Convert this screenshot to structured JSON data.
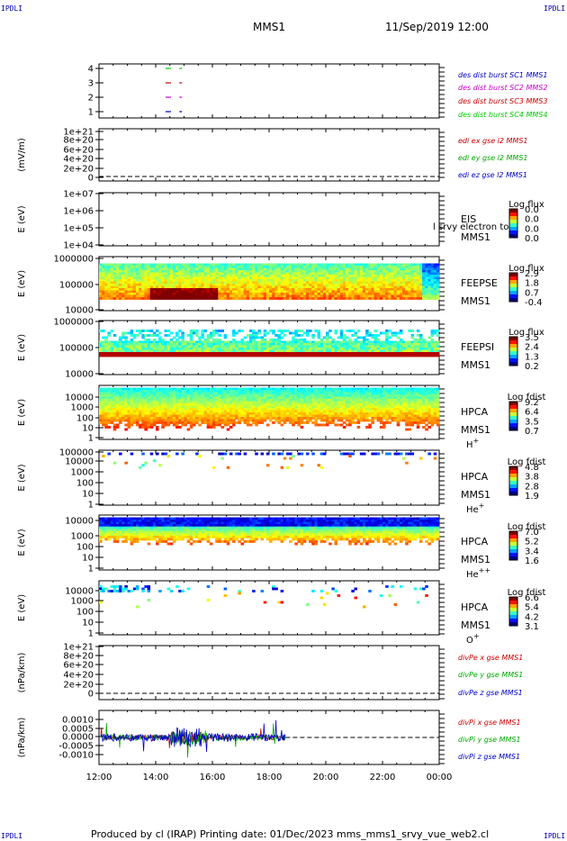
{
  "header": {
    "corner": "IPDLI",
    "spacecraft": "MMS1",
    "datetime": "11/Sep/2019 12:00"
  },
  "footer": "Produced by cl (IRAP)   Printing date: 01/Dec/2023   mms_mms1_srvy_vue_web2.cl",
  "time_axis": [
    "12:00",
    "14:00",
    "16:00",
    "18:00",
    "20:00",
    "22:00",
    "00:00"
  ],
  "chart_data": [
    {
      "type": "scatter",
      "panel": "burst_flags",
      "yticks": [
        "1",
        "2",
        "3",
        "4"
      ],
      "ylim": [
        0.6,
        4.5
      ],
      "series": [
        {
          "name": "des dist burst SC1 MMS1",
          "y": 1,
          "color": "#0000cc",
          "x": [
            "14:40",
            "14:50"
          ]
        },
        {
          "name": "des dist burst SC2 MMS2",
          "y": 2,
          "color": "#cc00cc",
          "x": [
            "14:40",
            "14:50"
          ]
        },
        {
          "name": "des dist burst SC3 MMS3",
          "y": 3,
          "color": "#cc0000",
          "x": [
            "14:40",
            "14:50"
          ]
        },
        {
          "name": "des dist burst SC4 MMS4",
          "y": 4,
          "color": "#00cc00",
          "x": [
            "14:40",
            "14:50"
          ]
        }
      ]
    },
    {
      "type": "line",
      "panel": "edi_e",
      "ylabel": "(mV/m)",
      "yticks": [
        "0",
        "2e+20",
        "4e+20",
        "6e+20",
        "8e+20",
        "1e+21"
      ],
      "series": [
        {
          "name": "edi ex gse l2 MMS1",
          "color": "#cc0000"
        },
        {
          "name": "edi ey gse l2 MMS1",
          "color": "#00aa00"
        },
        {
          "name": "edi ez gse l2 MMS1",
          "color": "#0000cc"
        }
      ]
    },
    {
      "type": "heatmap",
      "panel": "eis",
      "ylabel": "E (eV)",
      "yticks": [
        "1e+04",
        "1e+05",
        "1e+06",
        "1e+07"
      ],
      "labels": [
        "EIS",
        "MMS1"
      ],
      "overlay": "l srvy electron to",
      "colorbar": {
        "title": "Log flux",
        "ticks": [
          "0.0",
          "0.0",
          "0.0",
          "0.0"
        ]
      }
    },
    {
      "type": "heatmap",
      "panel": "feeps_e",
      "ylabel": "E (eV)",
      "yticks": [
        "10000",
        "100000",
        "1000000"
      ],
      "labels": [
        "FEEPSE",
        "MMS1"
      ],
      "colorbar": {
        "title": "Log flux",
        "ticks": [
          "2.9",
          "1.8",
          "0.7",
          "-0.4"
        ]
      }
    },
    {
      "type": "heatmap",
      "panel": "feeps_i",
      "ylabel": "E (eV)",
      "yticks": [
        "10000",
        "100000",
        "1000000"
      ],
      "labels": [
        "FEEPSI",
        "MMS1"
      ],
      "colorbar": {
        "title": "Log flux",
        "ticks": [
          "3.5",
          "2.4",
          "1.3",
          "0.2"
        ]
      }
    },
    {
      "type": "heatmap",
      "panel": "hpca_h",
      "ylabel": "E (eV)",
      "yticks": [
        "1",
        "10",
        "100",
        "1000",
        "10000"
      ],
      "labels": [
        "HPCA",
        "MMS1",
        "H+"
      ],
      "colorbar": {
        "title": "Log fdist",
        "ticks": [
          "9.2",
          "6.4",
          "3.5",
          "0.7"
        ]
      }
    },
    {
      "type": "heatmap",
      "panel": "hpca_he",
      "ylabel": "E (eV)",
      "yticks": [
        "1",
        "10",
        "100",
        "1000",
        "10000",
        "100000"
      ],
      "labels": [
        "HPCA",
        "MMS1",
        "He+"
      ],
      "colorbar": {
        "title": "Log fdist",
        "ticks": [
          "4.8",
          "3.8",
          "2.8",
          "1.9"
        ]
      }
    },
    {
      "type": "heatmap",
      "panel": "hpca_hepp",
      "ylabel": "E (eV)",
      "yticks": [
        "1",
        "10",
        "100",
        "1000",
        "10000"
      ],
      "labels": [
        "HPCA",
        "MMS1",
        "He++"
      ],
      "colorbar": {
        "title": "Log fdist",
        "ticks": [
          "7.0",
          "5.2",
          "3.4",
          "1.6"
        ]
      }
    },
    {
      "type": "heatmap",
      "panel": "hpca_o",
      "ylabel": "E (eV)",
      "yticks": [
        "1",
        "10",
        "100",
        "1000",
        "10000"
      ],
      "labels": [
        "HPCA",
        "MMS1",
        "O+"
      ],
      "colorbar": {
        "title": "Log fdist",
        "ticks": [
          "6.6",
          "5.4",
          "4.2",
          "3.1"
        ]
      }
    },
    {
      "type": "line",
      "panel": "divpe",
      "ylabel": "(nPa/km)",
      "yticks": [
        "0",
        "2e+20",
        "4e+20",
        "6e+20",
        "8e+20",
        "1e+21"
      ],
      "series": [
        {
          "name": "divPe x gse MMS1",
          "color": "#cc0000"
        },
        {
          "name": "divPe y gse MMS1",
          "color": "#00aa00"
        },
        {
          "name": "divPe z gse MMS1",
          "color": "#0000cc"
        }
      ]
    },
    {
      "type": "line",
      "panel": "divpi",
      "ylabel": "(nPa/km)",
      "yticks": [
        "-0.0010",
        "-0.0005",
        "0.0000",
        "0.0005",
        "0.0010"
      ],
      "ylim": [
        -0.0014,
        0.0014
      ],
      "series": [
        {
          "name": "divPi x gse MMS1",
          "color": "#cc0000"
        },
        {
          "name": "divPi y gse MMS1",
          "color": "#00aa00"
        },
        {
          "name": "divPi z gse MMS1",
          "color": "#0000cc"
        }
      ]
    }
  ]
}
